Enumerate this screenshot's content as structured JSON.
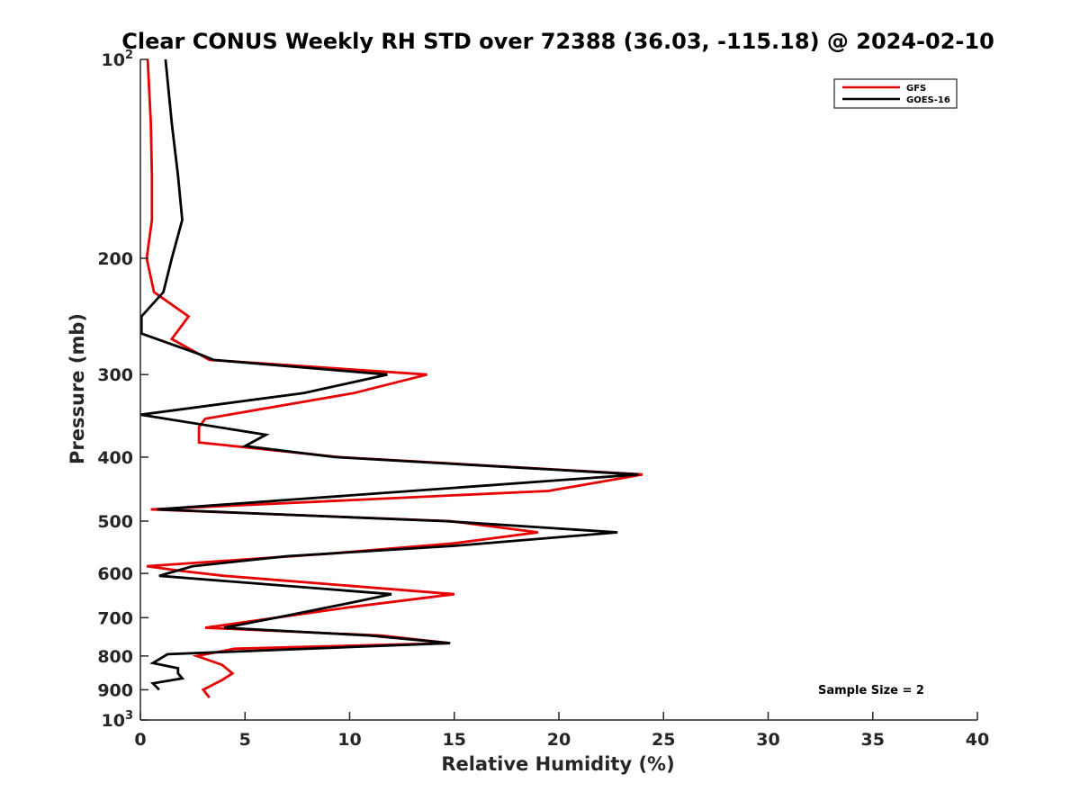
{
  "chart_data": {
    "type": "line",
    "title": "Clear CONUS Weekly RH STD over 72388 (36.03, -115.18) @ 2024-02-10",
    "xlabel": "Relative Humidity (%)",
    "ylabel": "Pressure (mb)",
    "xlim": [
      0,
      40
    ],
    "ylim": [
      100,
      1000
    ],
    "y_scale": "log",
    "y_reversed": true,
    "grid": false,
    "legend_position": "top-right",
    "x_ticks": [
      {
        "value": 0,
        "label": "0"
      },
      {
        "value": 5,
        "label": "5"
      },
      {
        "value": 10,
        "label": "10"
      },
      {
        "value": 15,
        "label": "15"
      },
      {
        "value": 20,
        "label": "20"
      },
      {
        "value": 25,
        "label": "25"
      },
      {
        "value": 30,
        "label": "30"
      },
      {
        "value": 35,
        "label": "35"
      },
      {
        "value": 40,
        "label": "40"
      }
    ],
    "y_ticks": [
      {
        "value": 100,
        "label": "10",
        "sup": "2"
      },
      {
        "value": 200,
        "label": "200",
        "sup": ""
      },
      {
        "value": 300,
        "label": "300",
        "sup": ""
      },
      {
        "value": 400,
        "label": "400",
        "sup": ""
      },
      {
        "value": 500,
        "label": "500",
        "sup": ""
      },
      {
        "value": 600,
        "label": "600",
        "sup": ""
      },
      {
        "value": 700,
        "label": "700",
        "sup": ""
      },
      {
        "value": 800,
        "label": "800",
        "sup": ""
      },
      {
        "value": 900,
        "label": "900",
        "sup": ""
      },
      {
        "value": 1000,
        "label": "10",
        "sup": "3"
      }
    ],
    "annotation": "Sample Size = 2",
    "series": [
      {
        "name": "GFS",
        "color": "#e60000",
        "points": [
          {
            "x": 0.35,
            "p": 100
          },
          {
            "x": 0.5,
            "p": 125
          },
          {
            "x": 0.55,
            "p": 150
          },
          {
            "x": 0.55,
            "p": 175
          },
          {
            "x": 0.3,
            "p": 200
          },
          {
            "x": 0.65,
            "p": 225
          },
          {
            "x": 2.3,
            "p": 245
          },
          {
            "x": 1.5,
            "p": 265
          },
          {
            "x": 3.3,
            "p": 285
          },
          {
            "x": 13.7,
            "p": 300
          },
          {
            "x": 10.2,
            "p": 320
          },
          {
            "x": 3.1,
            "p": 350
          },
          {
            "x": 2.8,
            "p": 360
          },
          {
            "x": 2.8,
            "p": 380
          },
          {
            "x": 9.5,
            "p": 400
          },
          {
            "x": 24.0,
            "p": 425
          },
          {
            "x": 19.5,
            "p": 450
          },
          {
            "x": 0.5,
            "p": 480
          },
          {
            "x": 14.8,
            "p": 500
          },
          {
            "x": 19.0,
            "p": 520
          },
          {
            "x": 15.0,
            "p": 540
          },
          {
            "x": 9.0,
            "p": 560
          },
          {
            "x": 0.3,
            "p": 585
          },
          {
            "x": 2.0,
            "p": 595
          },
          {
            "x": 4.0,
            "p": 605
          },
          {
            "x": 15.0,
            "p": 645
          },
          {
            "x": 10.0,
            "p": 675
          },
          {
            "x": 3.1,
            "p": 725
          },
          {
            "x": 11.5,
            "p": 745
          },
          {
            "x": 14.8,
            "p": 765
          },
          {
            "x": 4.5,
            "p": 780
          },
          {
            "x": 2.7,
            "p": 800
          },
          {
            "x": 3.9,
            "p": 825
          },
          {
            "x": 4.4,
            "p": 850
          },
          {
            "x": 3.9,
            "p": 870
          },
          {
            "x": 3.0,
            "p": 900
          },
          {
            "x": 3.3,
            "p": 925
          }
        ]
      },
      {
        "name": "GOES-16",
        "color": "#000000",
        "points": [
          {
            "x": 1.2,
            "p": 100
          },
          {
            "x": 1.5,
            "p": 125
          },
          {
            "x": 1.8,
            "p": 150
          },
          {
            "x": 2.0,
            "p": 175
          },
          {
            "x": 1.5,
            "p": 200
          },
          {
            "x": 1.1,
            "p": 225
          },
          {
            "x": 0.05,
            "p": 245
          },
          {
            "x": 0.05,
            "p": 260
          },
          {
            "x": 2.9,
            "p": 280
          },
          {
            "x": 3.5,
            "p": 285
          },
          {
            "x": 11.8,
            "p": 300
          },
          {
            "x": 7.8,
            "p": 320
          },
          {
            "x": 0.0,
            "p": 345
          },
          {
            "x": 6.0,
            "p": 370
          },
          {
            "x": 5.0,
            "p": 385
          },
          {
            "x": 9.3,
            "p": 400
          },
          {
            "x": 23.8,
            "p": 425
          },
          {
            "x": 0.8,
            "p": 480
          },
          {
            "x": 14.5,
            "p": 500
          },
          {
            "x": 22.8,
            "p": 520
          },
          {
            "x": 15.0,
            "p": 545
          },
          {
            "x": 7.0,
            "p": 565
          },
          {
            "x": 2.5,
            "p": 585
          },
          {
            "x": 0.9,
            "p": 605
          },
          {
            "x": 12.0,
            "p": 645
          },
          {
            "x": 10.0,
            "p": 665
          },
          {
            "x": 7.0,
            "p": 695
          },
          {
            "x": 4.0,
            "p": 725
          },
          {
            "x": 11.0,
            "p": 745
          },
          {
            "x": 14.8,
            "p": 765
          },
          {
            "x": 1.3,
            "p": 795
          },
          {
            "x": 0.6,
            "p": 820
          },
          {
            "x": 1.8,
            "p": 835
          },
          {
            "x": 1.8,
            "p": 850
          },
          {
            "x": 2.0,
            "p": 865
          },
          {
            "x": 0.6,
            "p": 880
          },
          {
            "x": 0.9,
            "p": 900
          }
        ]
      }
    ]
  }
}
